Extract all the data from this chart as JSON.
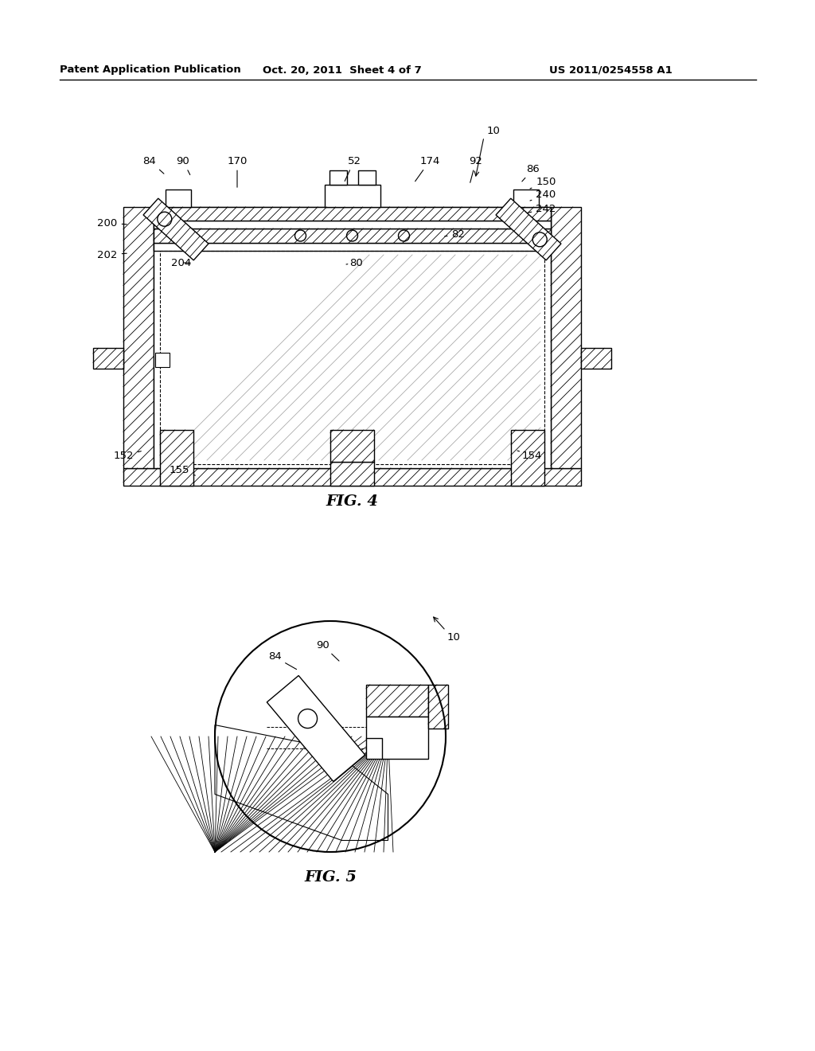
{
  "background_color": "#ffffff",
  "header_left": "Patent Application Publication",
  "header_center": "Oct. 20, 2011  Sheet 4 of 7",
  "header_right": "US 2011/0254558 A1",
  "fig4_caption": "FIG. 4",
  "fig5_caption": "FIG. 5"
}
